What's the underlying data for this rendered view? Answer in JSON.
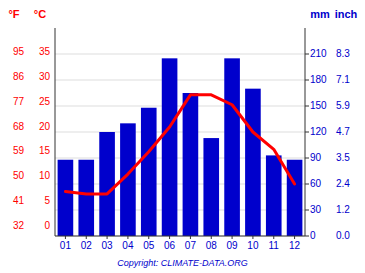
{
  "chart_data": {
    "type": "bar",
    "categories": [
      "01",
      "02",
      "03",
      "04",
      "05",
      "06",
      "07",
      "08",
      "09",
      "10",
      "11",
      "12"
    ],
    "series": [
      {
        "type": "bar",
        "axis": "y2",
        "color": "#0000cc",
        "values": [
          88,
          88,
          120,
          130,
          148,
          205,
          165,
          113,
          205,
          170,
          93,
          88
        ]
      },
      {
        "type": "line",
        "color": "#ff0000",
        "values": [
          7.0,
          6.5,
          6.5,
          10.5,
          15.0,
          20.0,
          26.5,
          26.5,
          24.5,
          19.0,
          15.5,
          8.5
        ]
      }
    ],
    "ylabel": "°C",
    "ylabel_f": "°F",
    "y2label": "mm",
    "y2label_inch": "inch",
    "ylim": [
      -2,
      40
    ],
    "yticks": [
      0,
      5,
      10,
      15,
      20,
      25,
      30,
      35
    ],
    "yticks_f": [
      {
        "value": 0,
        "label": "32"
      },
      {
        "value": 5,
        "label": "41"
      },
      {
        "value": 10,
        "label": "50"
      },
      {
        "value": 15,
        "label": "59"
      },
      {
        "value": 20,
        "label": "68"
      },
      {
        "value": 25,
        "label": "77"
      },
      {
        "value": 30,
        "label": "86"
      },
      {
        "value": 35,
        "label": "95"
      }
    ],
    "y2lim": [
      0,
      240
    ],
    "y2ticks": [
      0,
      30,
      60,
      90,
      120,
      150,
      180,
      210
    ],
    "y2ticks_inch": [
      {
        "value": 0,
        "label": "0.0"
      },
      {
        "value": 30,
        "label": "1.2"
      },
      {
        "value": 60,
        "label": "2.4"
      },
      {
        "value": 90,
        "label": "3.5"
      },
      {
        "value": 120,
        "label": "4.7"
      },
      {
        "value": 150,
        "label": "5.9"
      },
      {
        "value": 180,
        "label": "7.1"
      },
      {
        "value": 210,
        "label": "8.3"
      }
    ],
    "grid": true,
    "source": "Copyright: CLIMATE-DATA.ORG"
  }
}
